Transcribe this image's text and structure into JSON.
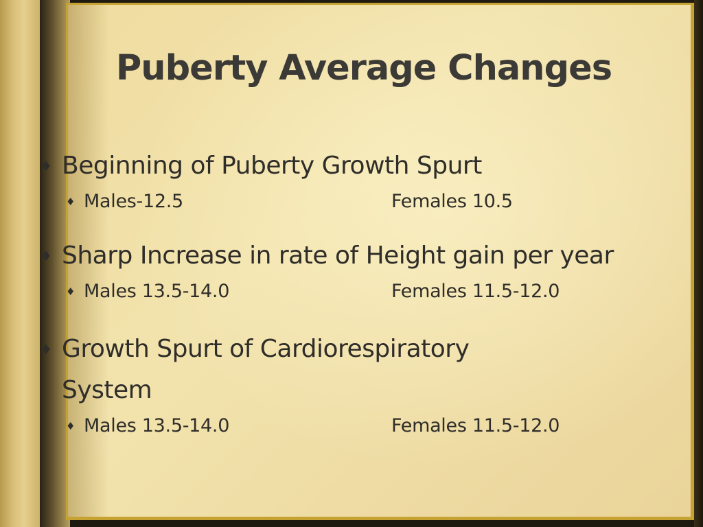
{
  "slide": {
    "title": "Puberty Average Changes",
    "bullets": [
      {
        "text": "Beginning of Puberty Growth Spurt",
        "sub": {
          "left": "Males-12.5",
          "right": "Females 10.5"
        }
      },
      {
        "text": "Sharp Increase in rate of Height gain per year",
        "sub": {
          "left": "Males 13.5-14.0",
          "right": "Females 11.5-12.0"
        }
      },
      {
        "text_line1": "Growth Spurt of Cardiorespiratory",
        "text_line2": "System",
        "sub": {
          "left": "Males 13.5-14.0",
          "right": "Females 11.5-12.0"
        }
      }
    ]
  },
  "icons": {
    "bullet": "diamond-bullet-icon"
  },
  "colors": {
    "page": "#f0dea4",
    "border": "#c6a233",
    "text": "#2f2d29"
  }
}
